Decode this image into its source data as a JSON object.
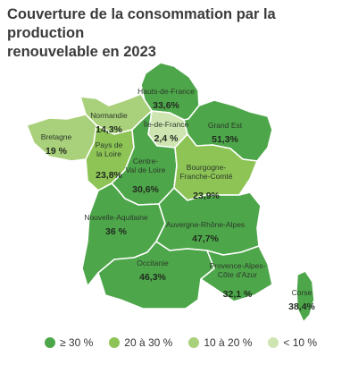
{
  "title_line1": "Couverture de la consommation par la production",
  "title_line2": "renouvelable en 2023",
  "colors": {
    "band_ge30": "#4ea64a",
    "band_20_30": "#8dc455",
    "band_10_20": "#a9d07a",
    "band_lt10": "#cfe5b1"
  },
  "regions": [
    {
      "name": "Hauts-de-France",
      "value": "33,6%",
      "band": "≥ 30 %"
    },
    {
      "name": "Normandie",
      "value": "14,3%",
      "band": "10 à 20 %"
    },
    {
      "name": "Île-de-France",
      "value": "2,4 %",
      "band": "< 10 %"
    },
    {
      "name": "Grand Est",
      "value": "51,3%",
      "band": "≥ 30 %"
    },
    {
      "name": "Bretagne",
      "value": "19%",
      "band": "10 à 20 %"
    },
    {
      "name": "Pays de la Loire",
      "value": "23,8%",
      "band": "20 à 30 %"
    },
    {
      "name": "Centre-Val de Loire",
      "value": "30,6%",
      "band": "≥ 30 %"
    },
    {
      "name": "Bourgogne-Franche-Comté",
      "value": "23,9%",
      "band": "20 à 30 %"
    },
    {
      "name": "Nouvelle-Aquitaine",
      "value": "36%",
      "band": "≥ 30 %"
    },
    {
      "name": "Auvergne-Rhône-Alpes",
      "value": "47,7%",
      "band": "≥ 30 %"
    },
    {
      "name": "Occitanie",
      "value": "46,3%",
      "band": "≥ 30 %"
    },
    {
      "name": "Provence-Alpes-Côte d'Azur",
      "value": "32,1%",
      "band": "≥ 30 %"
    },
    {
      "name": "Corse",
      "value": "38,4%",
      "band": "≥ 30 %"
    }
  ],
  "region_label_lines": {
    "hdf": [
      "Hauts-de-France"
    ],
    "nor": [
      "Normandie"
    ],
    "idf": [
      "Île-de-France"
    ],
    "ge": [
      "Grand Est"
    ],
    "bre": [
      "Bretagne"
    ],
    "pdl": [
      "Pays de",
      "la Loire"
    ],
    "cvl": [
      "Centre-",
      "Val de Loire"
    ],
    "bfc": [
      "Bourgogne-",
      "Franche-Comté"
    ],
    "naq": [
      "Nouvelle-Aquitaine"
    ],
    "ara": [
      "Auvergne-Rhône-Alpes"
    ],
    "occ": [
      "Occitanie"
    ],
    "paca": [
      "Provence-Alpes-",
      "Côte d'Azur"
    ],
    "cor": [
      "Corse"
    ]
  },
  "region_values": {
    "hdf": "33,6%",
    "nor": "14,3%",
    "idf": "2,4 %",
    "ge": "51,3%",
    "bre": "19 %",
    "pdl": "23,8%",
    "cvl": "30,6%",
    "bfc": "23,9%",
    "naq": "36 %",
    "ara": "47,7%",
    "occ": "46,3%",
    "paca": "32,1 %",
    "cor": "38,4%"
  },
  "legend": [
    {
      "label": "≥ 30 %",
      "color": "#4ea64a"
    },
    {
      "label": "20 à 30 %",
      "color": "#8dc455"
    },
    {
      "label": "10 à 20 %",
      "color": "#a9d07a"
    },
    {
      "label": "< 10 %",
      "color": "#cfe5b1"
    }
  ]
}
